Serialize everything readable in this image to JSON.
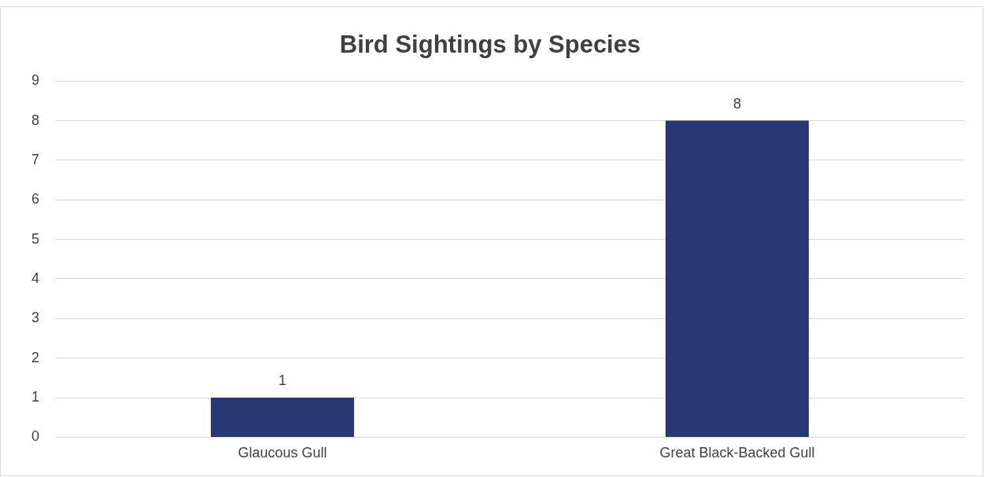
{
  "chart_data": {
    "type": "bar",
    "title": "Bird Sightings by Species",
    "categories": [
      "Glaucous Gull",
      "Great Black-Backed Gull"
    ],
    "values": [
      1,
      8
    ],
    "color": "#283874",
    "ylim": [
      0,
      9
    ],
    "yticks": [
      0,
      1,
      2,
      3,
      4,
      5,
      6,
      7,
      8,
      9
    ],
    "grid": "y",
    "data_labels": true,
    "legend": false
  }
}
